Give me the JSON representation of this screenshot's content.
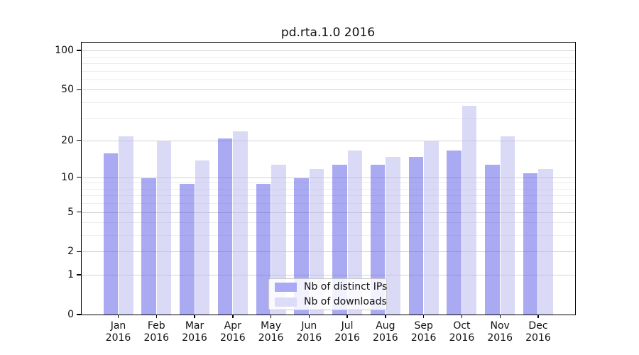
{
  "title": "pd.rta.1.0 2016",
  "chart_data": {
    "type": "bar",
    "title": "pd.rta.1.0 2016",
    "x_categories": [
      "Jan",
      "Feb",
      "Mar",
      "Apr",
      "May",
      "Jun",
      "Jul",
      "Aug",
      "Sep",
      "Oct",
      "Nov",
      "Dec"
    ],
    "x_year_label": "2016",
    "series": [
      {
        "name": "Nb of distinct IPs",
        "color": "rgba(85,85,232,0.5)",
        "legend_color": "#a9a9f4",
        "values": [
          16,
          10,
          9,
          21,
          9,
          10,
          13,
          13,
          15,
          17,
          13,
          11
        ]
      },
      {
        "name": "Nb of downloads",
        "color": "rgba(182,182,240,0.5)",
        "legend_color": "#dcdcf8",
        "values": [
          22,
          20,
          14,
          24,
          13,
          12,
          17,
          15,
          20,
          38,
          22,
          12
        ]
      }
    ],
    "yscale": "log1p",
    "ylim": [
      0,
      115
    ],
    "yticks": [
      100,
      50,
      20,
      10,
      5,
      2,
      1,
      0
    ],
    "gridlines_major": [
      1,
      2,
      5,
      10,
      20,
      50,
      100
    ],
    "gridlines_minor": [
      3,
      4,
      6,
      7,
      8,
      9,
      30,
      40,
      60,
      70,
      80,
      90
    ],
    "legend_position": "lower center",
    "grid": true
  },
  "colors": {
    "grid_major": "#d2d2d2",
    "grid_minor": "#ececec",
    "spine": "#000000",
    "text": "#111111"
  }
}
